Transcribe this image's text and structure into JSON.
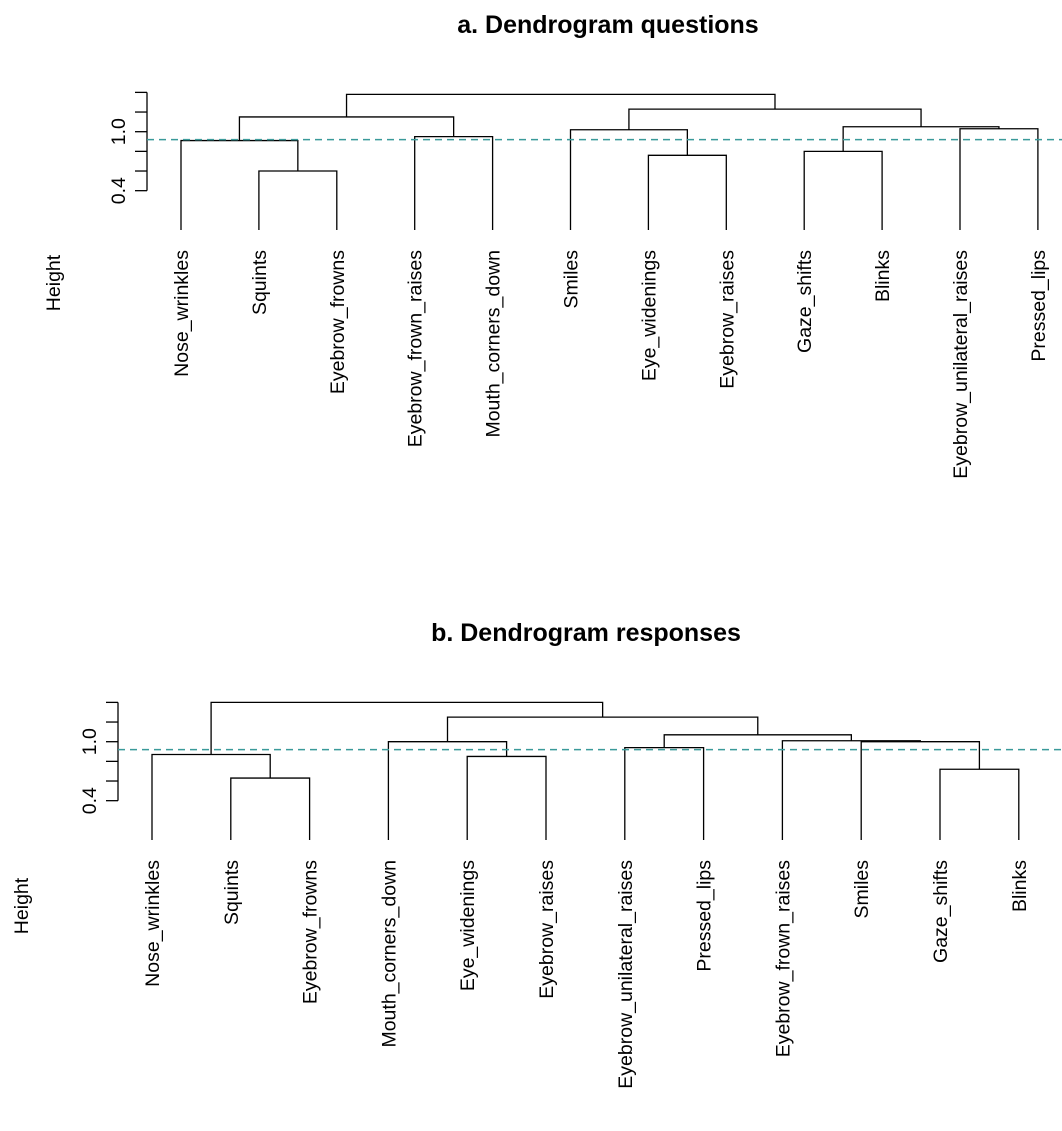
{
  "colors": {
    "cut_line": "#3a9a9a",
    "branches": "#000000"
  },
  "chart_data": [
    {
      "type": "dendrogram",
      "title": "a. Dendrogram questions",
      "ylabel": "Height",
      "yticks": [
        "0.4",
        "1.0"
      ],
      "ylim": [
        0.0,
        1.4
      ],
      "cut_height": 0.92,
      "leaves": [
        "Nose_wrinkles",
        "Squints",
        "Eyebrow_frowns",
        "Eyebrow_frown_raises",
        "Mouth_corners_down",
        "Smiles",
        "Eye_widenings",
        "Eyebrow_raises",
        "Gaze_shifts",
        "Blinks",
        "Eyebrow_unilateral_raises",
        "Pressed_lips"
      ],
      "merges": [
        {
          "a": "L1",
          "b": "L2",
          "h": 0.6
        },
        {
          "a": "L0",
          "b": "M0",
          "h": 0.91
        },
        {
          "a": "L3",
          "b": "L4",
          "h": 0.95
        },
        {
          "a": "M1",
          "b": "M2",
          "h": 1.15
        },
        {
          "a": "L6",
          "b": "L7",
          "h": 0.76
        },
        {
          "a": "L5",
          "b": "M4",
          "h": 1.02
        },
        {
          "a": "L8",
          "b": "L9",
          "h": 0.8
        },
        {
          "a": "L10",
          "b": "L11",
          "h": 1.03
        },
        {
          "a": "M6",
          "b": "M7",
          "h": 1.05
        },
        {
          "a": "M5",
          "b": "M8",
          "h": 1.23
        },
        {
          "a": "M3",
          "b": "M9",
          "h": 1.38
        }
      ]
    },
    {
      "type": "dendrogram",
      "title": "b. Dendrogram responses",
      "ylabel": "Height",
      "yticks": [
        "0.4",
        "1.0"
      ],
      "ylim": [
        0.0,
        1.4
      ],
      "cut_height": 0.92,
      "leaves": [
        "Nose_wrinkles",
        "Squints",
        "Eyebrow_frowns",
        "Mouth_corners_down",
        "Eye_widenings",
        "Eyebrow_raises",
        "Eyebrow_unilateral_raises",
        "Pressed_lips",
        "Eyebrow_frown_raises",
        "Smiles",
        "Gaze_shifts",
        "Blinks"
      ],
      "merges": [
        {
          "a": "L1",
          "b": "L2",
          "h": 0.63
        },
        {
          "a": "L0",
          "b": "M0",
          "h": 0.87
        },
        {
          "a": "L4",
          "b": "L5",
          "h": 0.85
        },
        {
          "a": "L3",
          "b": "M2",
          "h": 1.0
        },
        {
          "a": "L6",
          "b": "L7",
          "h": 0.94
        },
        {
          "a": "L10",
          "b": "L11",
          "h": 0.72
        },
        {
          "a": "L9",
          "b": "M5",
          "h": 1.0
        },
        {
          "a": "L8",
          "b": "M6",
          "h": 1.01
        },
        {
          "a": "M4",
          "b": "M7",
          "h": 1.07
        },
        {
          "a": "M3",
          "b": "M8",
          "h": 1.25
        },
        {
          "a": "M1",
          "b": "M9",
          "h": 1.4
        }
      ]
    }
  ]
}
